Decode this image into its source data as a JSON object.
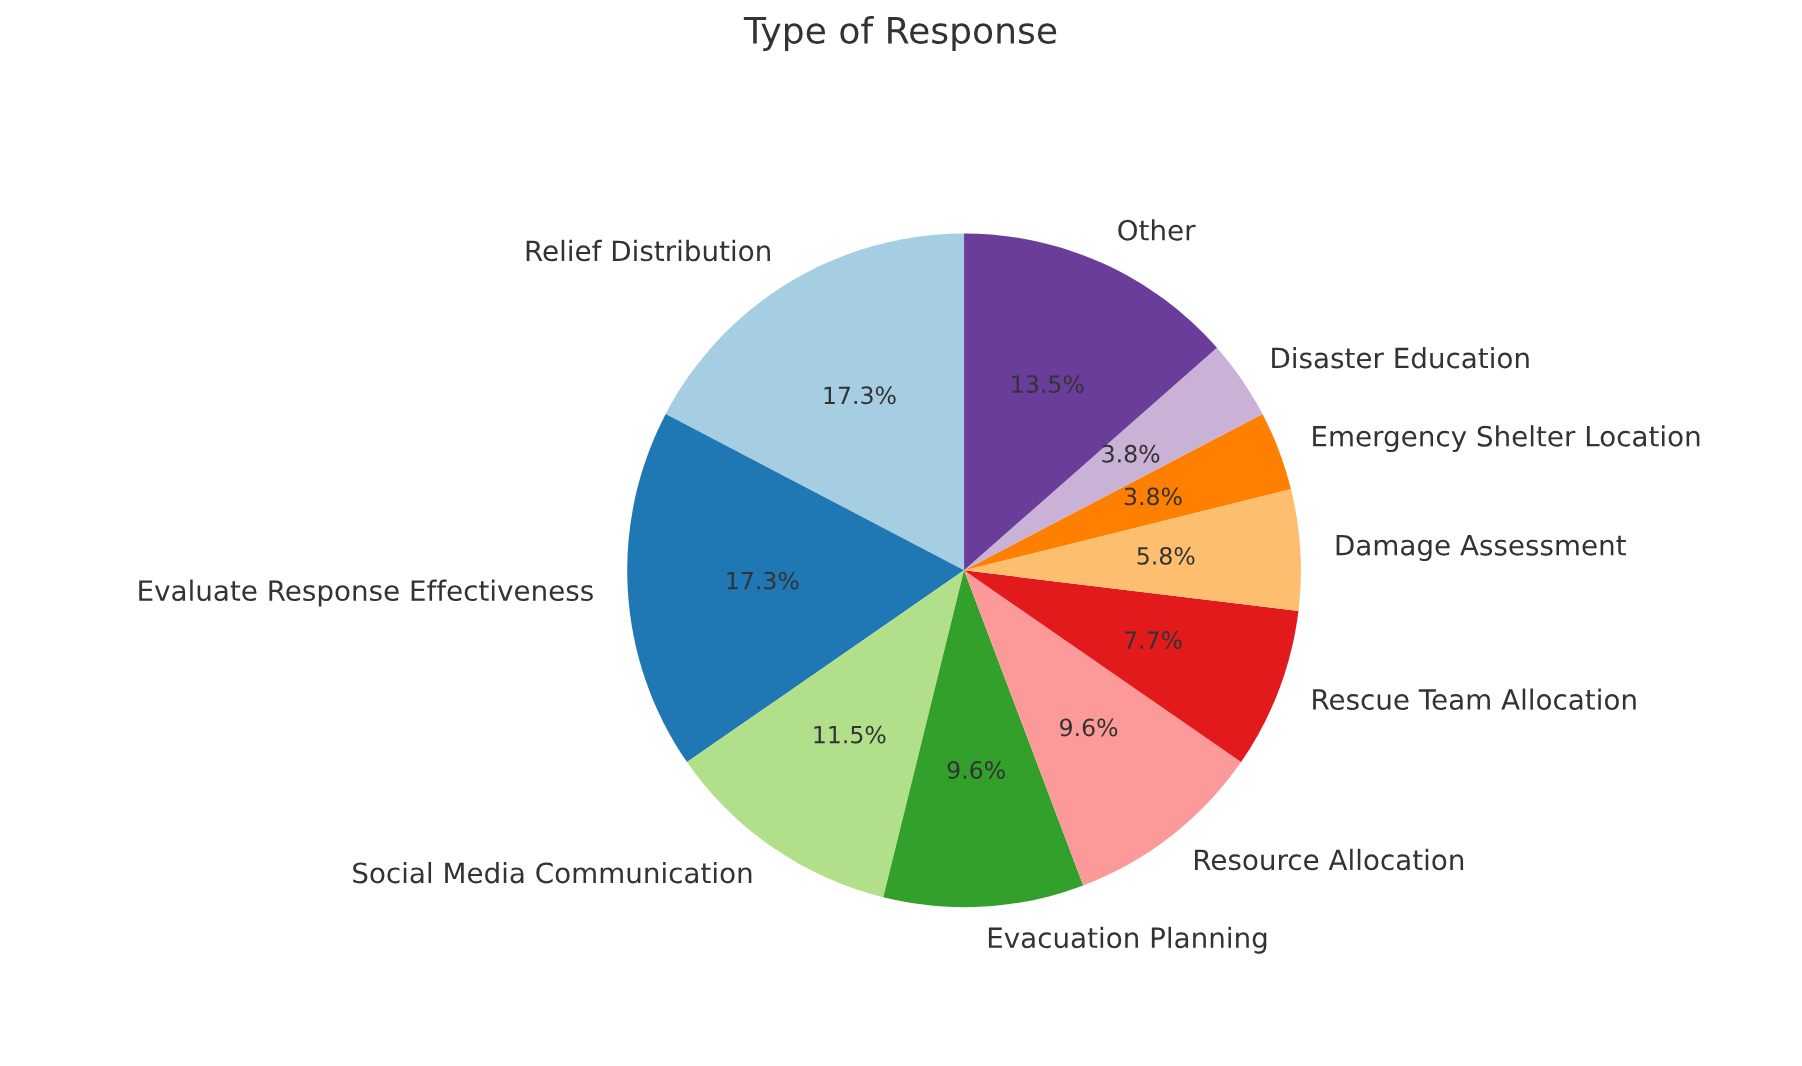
{
  "chart_data": {
    "type": "pie",
    "title": "Type of Response",
    "categories": [
      "Relief Distribution",
      "Evaluate Response Effectiveness",
      "Social Media Communication",
      "Evacuation Planning",
      "Resource Allocation",
      "Rescue Team Allocation",
      "Damage Assessment",
      "Emergency Shelter Location",
      "Disaster Education",
      "Other"
    ],
    "values": [
      17.3,
      17.3,
      11.5,
      9.6,
      9.6,
      7.7,
      5.8,
      3.8,
      3.8,
      13.5
    ],
    "value_labels": [
      "17.3%",
      "17.3%",
      "11.5%",
      "9.6%",
      "9.6%",
      "7.7%",
      "5.8%",
      "3.8%",
      "3.8%",
      "13.5%"
    ],
    "colors": [
      "#a6cee3",
      "#1f78b4",
      "#b2df8a",
      "#33a02c",
      "#fb9a99",
      "#e31a1c",
      "#fdbf6f",
      "#ff7f00",
      "#cab2d6",
      "#6a3d9a"
    ]
  }
}
